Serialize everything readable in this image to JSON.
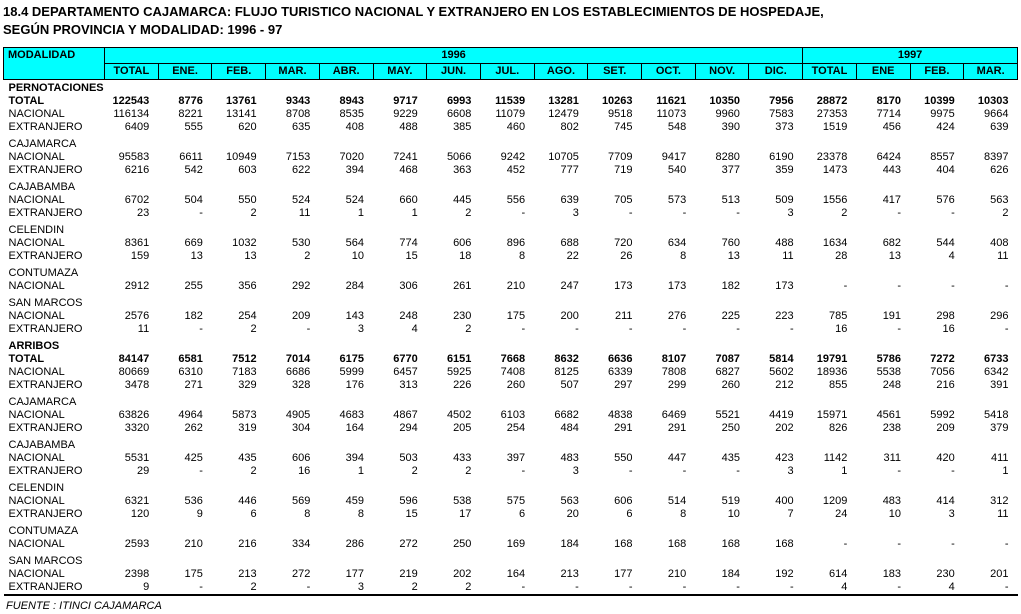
{
  "title": {
    "line1": "18.4   DEPARTAMENTO CAJAMARCA: FLUJO TURISTICO NACIONAL Y EXTRANJERO EN LOS ESTABLECIMIENTOS DE HOSPEDAJE,",
    "line2": "SEGÚN PROVINCIA Y MODALIDAD: 1996 - 97"
  },
  "colors": {
    "header_bg": "#00ffff",
    "border": "#000000",
    "page_bg": "#ffffff"
  },
  "table": {
    "modalidad_label": "MODALIDAD",
    "year_groups": [
      {
        "label": "1996",
        "colspan": 13
      },
      {
        "label": "1997",
        "colspan": 4
      }
    ],
    "columns": [
      "TOTAL",
      "ENE.",
      "FEB.",
      "MAR.",
      "ABR.",
      "MAY.",
      "JUN.",
      "JUL.",
      "AGO.",
      "SET.",
      "OCT.",
      "NOV.",
      "DIC.",
      "TOTAL",
      "ENE",
      "FEB.",
      "MAR."
    ],
    "rows": [
      {
        "label": "PERNOTACIONES",
        "bold": true,
        "gap": false,
        "values": []
      },
      {
        "label": "TOTAL",
        "bold": true,
        "gap": false,
        "values": [
          "122543",
          "8776",
          "13761",
          "9343",
          "8943",
          "9717",
          "6993",
          "11539",
          "13281",
          "10263",
          "11621",
          "10350",
          "7956",
          "28872",
          "8170",
          "10399",
          "10303"
        ]
      },
      {
        "label": "NACIONAL",
        "bold": false,
        "gap": false,
        "values": [
          "116134",
          "8221",
          "13141",
          "8708",
          "8535",
          "9229",
          "6608",
          "11079",
          "12479",
          "9518",
          "11073",
          "9960",
          "7583",
          "27353",
          "7714",
          "9975",
          "9664"
        ]
      },
      {
        "label": "EXTRANJERO",
        "bold": false,
        "gap": false,
        "values": [
          "6409",
          "555",
          "620",
          "635",
          "408",
          "488",
          "385",
          "460",
          "802",
          "745",
          "548",
          "390",
          "373",
          "1519",
          "456",
          "424",
          "639"
        ]
      },
      {
        "label": "CAJAMARCA",
        "bold": false,
        "gap": true,
        "values": []
      },
      {
        "label": "NACIONAL",
        "bold": false,
        "gap": false,
        "values": [
          "95583",
          "6611",
          "10949",
          "7153",
          "7020",
          "7241",
          "5066",
          "9242",
          "10705",
          "7709",
          "9417",
          "8280",
          "6190",
          "23378",
          "6424",
          "8557",
          "8397"
        ]
      },
      {
        "label": "EXTRANJERO",
        "bold": false,
        "gap": false,
        "values": [
          "6216",
          "542",
          "603",
          "622",
          "394",
          "468",
          "363",
          "452",
          "777",
          "719",
          "540",
          "377",
          "359",
          "1473",
          "443",
          "404",
          "626"
        ]
      },
      {
        "label": "CAJABAMBA",
        "bold": false,
        "gap": true,
        "values": []
      },
      {
        "label": "NACIONAL",
        "bold": false,
        "gap": false,
        "values": [
          "6702",
          "504",
          "550",
          "524",
          "524",
          "660",
          "445",
          "556",
          "639",
          "705",
          "573",
          "513",
          "509",
          "1556",
          "417",
          "576",
          "563"
        ]
      },
      {
        "label": "EXTRANJERO",
        "bold": false,
        "gap": false,
        "values": [
          "23",
          "-",
          "2",
          "11",
          "1",
          "1",
          "2",
          "-",
          "3",
          "-",
          "-",
          "-",
          "3",
          "2",
          "-",
          "-",
          "2"
        ]
      },
      {
        "label": "CELENDIN",
        "bold": false,
        "gap": true,
        "values": []
      },
      {
        "label": "NACIONAL",
        "bold": false,
        "gap": false,
        "values": [
          "8361",
          "669",
          "1032",
          "530",
          "564",
          "774",
          "606",
          "896",
          "688",
          "720",
          "634",
          "760",
          "488",
          "1634",
          "682",
          "544",
          "408"
        ]
      },
      {
        "label": "EXTRANJERO",
        "bold": false,
        "gap": false,
        "values": [
          "159",
          "13",
          "13",
          "2",
          "10",
          "15",
          "18",
          "8",
          "22",
          "26",
          "8",
          "13",
          "11",
          "28",
          "13",
          "4",
          "11"
        ]
      },
      {
        "label": "CONTUMAZA",
        "bold": false,
        "gap": true,
        "values": []
      },
      {
        "label": "NACIONAL",
        "bold": false,
        "gap": false,
        "values": [
          "2912",
          "255",
          "356",
          "292",
          "284",
          "306",
          "261",
          "210",
          "247",
          "173",
          "173",
          "182",
          "173",
          "-",
          "-",
          "-",
          "-"
        ]
      },
      {
        "label": "SAN MARCOS",
        "bold": false,
        "gap": true,
        "values": []
      },
      {
        "label": "NACIONAL",
        "bold": false,
        "gap": false,
        "values": [
          "2576",
          "182",
          "254",
          "209",
          "143",
          "248",
          "230",
          "175",
          "200",
          "211",
          "276",
          "225",
          "223",
          "785",
          "191",
          "298",
          "296"
        ]
      },
      {
        "label": "EXTRANJERO",
        "bold": false,
        "gap": false,
        "values": [
          "11",
          "-",
          "2",
          "-",
          "3",
          "4",
          "2",
          "-",
          "-",
          "-",
          "-",
          "-",
          "-",
          "16",
          "-",
          "16",
          "-"
        ]
      },
      {
        "label": "ARRIBOS",
        "bold": true,
        "gap": true,
        "values": []
      },
      {
        "label": "TOTAL",
        "bold": true,
        "gap": false,
        "values": [
          "84147",
          "6581",
          "7512",
          "7014",
          "6175",
          "6770",
          "6151",
          "7668",
          "8632",
          "6636",
          "8107",
          "7087",
          "5814",
          "19791",
          "5786",
          "7272",
          "6733"
        ]
      },
      {
        "label": "NACIONAL",
        "bold": false,
        "gap": false,
        "values": [
          "80669",
          "6310",
          "7183",
          "6686",
          "5999",
          "6457",
          "5925",
          "7408",
          "8125",
          "6339",
          "7808",
          "6827",
          "5602",
          "18936",
          "5538",
          "7056",
          "6342"
        ]
      },
      {
        "label": "EXTRANJERO",
        "bold": false,
        "gap": false,
        "values": [
          "3478",
          "271",
          "329",
          "328",
          "176",
          "313",
          "226",
          "260",
          "507",
          "297",
          "299",
          "260",
          "212",
          "855",
          "248",
          "216",
          "391"
        ]
      },
      {
        "label": "CAJAMARCA",
        "bold": false,
        "gap": true,
        "values": []
      },
      {
        "label": "NACIONAL",
        "bold": false,
        "gap": false,
        "values": [
          "63826",
          "4964",
          "5873",
          "4905",
          "4683",
          "4867",
          "4502",
          "6103",
          "6682",
          "4838",
          "6469",
          "5521",
          "4419",
          "15971",
          "4561",
          "5992",
          "5418"
        ]
      },
      {
        "label": "EXTRANJERO",
        "bold": false,
        "gap": false,
        "values": [
          "3320",
          "262",
          "319",
          "304",
          "164",
          "294",
          "205",
          "254",
          "484",
          "291",
          "291",
          "250",
          "202",
          "826",
          "238",
          "209",
          "379"
        ]
      },
      {
        "label": "CAJABAMBA",
        "bold": false,
        "gap": true,
        "values": []
      },
      {
        "label": "NACIONAL",
        "bold": false,
        "gap": false,
        "values": [
          "5531",
          "425",
          "435",
          "606",
          "394",
          "503",
          "433",
          "397",
          "483",
          "550",
          "447",
          "435",
          "423",
          "1142",
          "311",
          "420",
          "411"
        ]
      },
      {
        "label": "EXTRANJERO",
        "bold": false,
        "gap": false,
        "values": [
          "29",
          "-",
          "2",
          "16",
          "1",
          "2",
          "2",
          "-",
          "3",
          "-",
          "-",
          "-",
          "3",
          "1",
          "-",
          "-",
          "1"
        ]
      },
      {
        "label": "CELENDIN",
        "bold": false,
        "gap": true,
        "values": []
      },
      {
        "label": "NACIONAL",
        "bold": false,
        "gap": false,
        "values": [
          "6321",
          "536",
          "446",
          "569",
          "459",
          "596",
          "538",
          "575",
          "563",
          "606",
          "514",
          "519",
          "400",
          "1209",
          "483",
          "414",
          "312"
        ]
      },
      {
        "label": "EXTRANJERO",
        "bold": false,
        "gap": false,
        "values": [
          "120",
          "9",
          "6",
          "8",
          "8",
          "15",
          "17",
          "6",
          "20",
          "6",
          "8",
          "10",
          "7",
          "24",
          "10",
          "3",
          "11"
        ]
      },
      {
        "label": "CONTUMAZA",
        "bold": false,
        "gap": true,
        "values": []
      },
      {
        "label": "NACIONAL",
        "bold": false,
        "gap": false,
        "values": [
          "2593",
          "210",
          "216",
          "334",
          "286",
          "272",
          "250",
          "169",
          "184",
          "168",
          "168",
          "168",
          "168",
          "-",
          "-",
          "-",
          "-"
        ]
      },
      {
        "label": "SAN MARCOS",
        "bold": false,
        "gap": true,
        "values": []
      },
      {
        "label": "NACIONAL",
        "bold": false,
        "gap": false,
        "values": [
          "2398",
          "175",
          "213",
          "272",
          "177",
          "219",
          "202",
          "164",
          "213",
          "177",
          "210",
          "184",
          "192",
          "614",
          "183",
          "230",
          "201"
        ]
      },
      {
        "label": "EXTRANJERO",
        "bold": false,
        "gap": false,
        "values": [
          "9",
          "-",
          "2",
          "-",
          "3",
          "2",
          "2",
          "-",
          "-",
          "-",
          "-",
          "-",
          "-",
          "4",
          "-",
          "4",
          "-"
        ]
      }
    ]
  },
  "footer": {
    "source": "FUENTE : ITINCI CAJAMARCA"
  }
}
